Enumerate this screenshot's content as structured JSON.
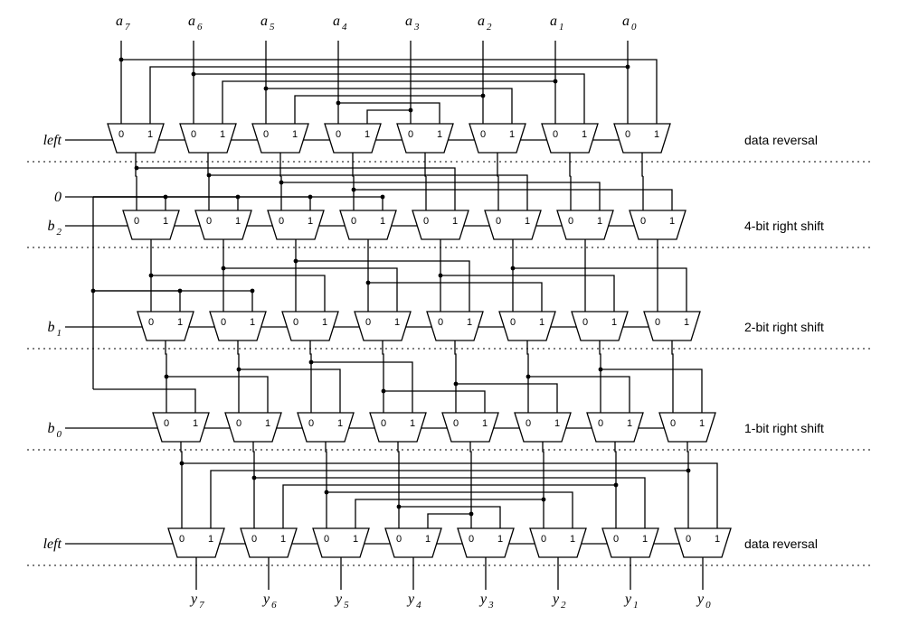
{
  "inputs": [
    "a7",
    "a6",
    "a5",
    "a4",
    "a3",
    "a2",
    "a1",
    "a0"
  ],
  "outputs": [
    "y7",
    "y6",
    "y5",
    "y4",
    "y3",
    "y2",
    "y1",
    "y0"
  ],
  "stages": [
    {
      "label": "data reversal",
      "control": "left"
    },
    {
      "label": "4-bit right shift",
      "control": "b2"
    },
    {
      "label": "2-bit right shift",
      "control": "b1"
    },
    {
      "label": "1-bit right shift",
      "control": "b0"
    },
    {
      "label": "data reversal",
      "control": "left"
    }
  ],
  "constant_input": "0",
  "mux_port_labels": [
    "0",
    "1"
  ]
}
